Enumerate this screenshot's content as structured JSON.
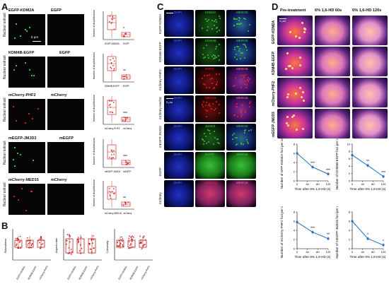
{
  "panels": {
    "a": "A",
    "b": "B",
    "c": "C",
    "d": "D"
  },
  "panelA": {
    "row_label": "Nuclear extract",
    "rows": [
      {
        "left": "EGFP-KDM2A",
        "right": "EGFP",
        "ylab": "Number of droplets/area",
        "x1": "EGFP-KDM2A",
        "x2": "EGFP",
        "sig": "*",
        "scale": "5 μm"
      },
      {
        "left": "KDM4B-EGFP",
        "right": "EGFP",
        "ylab": "Number of droplets/area",
        "x1": "KDM4B-EGFP",
        "x2": "EGFP",
        "sig": "**"
      },
      {
        "left": "mCherry-PHF2",
        "right": "mCherry",
        "ylab": "Number of droplets/area",
        "x1": "mCherry-PHF2",
        "x2": "mCherry",
        "sig": "***"
      },
      {
        "left": "mEGFP-JMJD3",
        "right": "mEGFP",
        "ylab": "Number of droplets/area",
        "x1": "mEGFP-JMJD3",
        "x2": "mEGFP",
        "sig": "***"
      },
      {
        "left": "mCherry-MED15",
        "right": "mCherry",
        "ylab": "Number of droplets/area",
        "x1": "mCherry-MED15",
        "x2": "mCherry",
        "sig": "**"
      }
    ]
  },
  "panelB": {
    "plots": [
      {
        "ylab": "Roundness",
        "cats": [
          "EGFP-KDM2A",
          "KDM4B-EGFP",
          "mCherry-PHF2"
        ]
      },
      {
        "ylab": "Aspect ratio",
        "cats": [
          "EGFP-KDM2A",
          "KDM4B-EGFP",
          "mCherry-PHF2"
        ]
      },
      {
        "ylab": "Convexity",
        "cats": [
          "EGFP-KDM2A",
          "KDM4B-EGFP",
          "mCherry-PHF2"
        ]
      }
    ]
  },
  "panelC": {
    "cols": [
      "DAPI",
      "MERGE"
    ],
    "scale": "5 μm",
    "rows": [
      {
        "name": "EGFP-KDM2A",
        "mid": "KDM2A",
        "midcolor": "#3bd13b"
      },
      {
        "name": "KDM4B-EGFP",
        "mid": "KDM4B",
        "midcolor": "#3bd13b"
      },
      {
        "name": "mCherry-PHF2",
        "mid": "PHF2",
        "midcolor": "#ff2020"
      },
      {
        "name": "mCherry-med15",
        "mid": "MED15",
        "midcolor": "#ff2020"
      },
      {
        "name": "mEGFP-JMJD3",
        "mid": "JMJD3",
        "midcolor": "#3bd13b"
      },
      {
        "name": "EGFP",
        "mid": "EGFP",
        "midcolor": "#3bd13b"
      },
      {
        "name": "mCherry",
        "mid": "mCherry",
        "midcolor": "#ff2020"
      }
    ]
  },
  "panelD": {
    "cols": [
      "Pre-treatment",
      "6% 1,6-HD 60s",
      "6% 1,6-HD 120s"
    ],
    "scale": "5 μm",
    "rows": [
      "EGFP-KDM2A",
      "KDM4B-EGFP",
      "mCherry-PHF2",
      "mEGFP-JMJD3"
    ],
    "charts": [
      {
        "ylab": "Number of GFP-KDM2A foci per cell",
        "xlab": "Time after 6% 1,6-HD (s)"
      },
      {
        "ylab": "Number of KDM4B-EGFP foci per cell",
        "xlab": "Time after 6% 1,6-HD (s)"
      },
      {
        "ylab": "Number of mCherry-PHF2 foci per cell",
        "xlab": "Time after 6% 1,6-HD (s)"
      },
      {
        "ylab": "Number of mEGFP-JMJD3 foci per cell",
        "xlab": "Time after 6% 1,6-HD (s)"
      }
    ]
  },
  "chart_data": [
    {
      "type": "line",
      "x": [
        0,
        60,
        120
      ],
      "values": [
        6.0,
        3.0,
        1.5
      ],
      "ylim": [
        0,
        8
      ],
      "xticks": [
        0,
        40,
        80,
        120
      ],
      "yticks": [
        0,
        2,
        4,
        6,
        8
      ],
      "sig": [
        "",
        "***",
        "***"
      ],
      "xlabel": "Time after 6% 1,6-HD (s)",
      "ylabel": "Number of GFP-KDM2A foci per cell"
    },
    {
      "type": "line",
      "x": [
        0,
        60,
        120
      ],
      "values": [
        7.0,
        4.2,
        1.2
      ],
      "ylim": [
        0,
        10
      ],
      "xticks": [
        0,
        40,
        80,
        120
      ],
      "yticks": [
        0,
        2,
        4,
        6,
        8,
        10
      ],
      "sig": [
        "",
        "**",
        "***"
      ],
      "xlabel": "Time after 6% 1,6-HD (s)",
      "ylabel": "Number of KDM4B-EGFP foci per cell"
    },
    {
      "type": "line",
      "x": [
        0,
        60,
        120
      ],
      "values": [
        5.8,
        3.6,
        2.2
      ],
      "ylim": [
        0,
        8
      ],
      "xticks": [
        0,
        40,
        80,
        120
      ],
      "yticks": [
        0,
        2,
        4,
        6,
        8
      ],
      "sig": [
        "",
        "***",
        "**"
      ],
      "xlabel": "Time after 6% 1,6-HD (s)",
      "ylabel": "Number of mCherry-PHF2 foci per cell"
    },
    {
      "type": "line",
      "x": [
        0,
        60,
        120
      ],
      "values": [
        6.0,
        2.2,
        0.8
      ],
      "ylim": [
        0,
        8
      ],
      "xticks": [
        0,
        40,
        80,
        120
      ],
      "yticks": [
        0,
        2,
        4,
        6,
        8
      ],
      "sig": [
        "",
        "*",
        "*"
      ],
      "xlabel": "Time after 6% 1,6-HD (s)",
      "ylabel": "Number of mEGFP-JMJD3 foci per cell"
    }
  ]
}
